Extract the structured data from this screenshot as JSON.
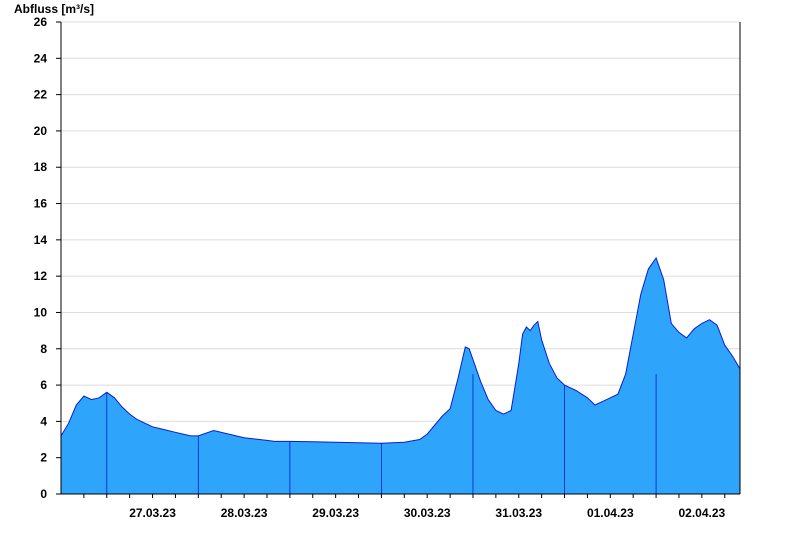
{
  "chart_data": {
    "type": "area",
    "ylabel": "Abfluss [m³/s]",
    "ylim": [
      0,
      26
    ],
    "yticks": [
      0,
      2,
      4,
      6,
      8,
      10,
      12,
      14,
      16,
      18,
      20,
      22,
      24,
      26
    ],
    "xlim": [
      "2023-03-26T12:00",
      "2023-04-02T22:00"
    ],
    "day_ticks": [
      "27.03.23",
      "28.03.23",
      "29.03.23",
      "30.03.23",
      "31.03.23",
      "01.04.23",
      "02.04.23"
    ],
    "grid": true,
    "colors": {
      "fill": "#2ea4fa",
      "line": "#0a1ecf",
      "grid": "#dcdcdc",
      "axis": "#000000"
    },
    "series": [
      {
        "x": [
          "2023-03-26T12:00",
          "2023-03-26T14:00",
          "2023-03-26T16:00",
          "2023-03-26T18:00",
          "2023-03-26T20:00",
          "2023-03-26T22:00",
          "2023-03-27T00:00",
          "2023-03-27T02:00",
          "2023-03-27T04:00",
          "2023-03-27T06:00",
          "2023-03-27T08:00",
          "2023-03-27T10:00",
          "2023-03-27T12:00",
          "2023-03-27T14:00",
          "2023-03-27T16:00",
          "2023-03-27T18:00",
          "2023-03-27T20:00",
          "2023-03-27T22:00",
          "2023-03-28T00:00",
          "2023-03-28T04:00",
          "2023-03-28T08:00",
          "2023-03-28T12:00",
          "2023-03-28T14:00",
          "2023-03-28T16:00",
          "2023-03-28T18:00",
          "2023-03-28T20:00",
          "2023-03-29T00:00",
          "2023-03-29T06:00",
          "2023-03-29T12:00",
          "2023-03-29T18:00",
          "2023-03-30T00:00",
          "2023-03-30T06:00",
          "2023-03-30T10:00",
          "2023-03-30T12:00",
          "2023-03-30T14:00",
          "2023-03-30T16:00",
          "2023-03-30T18:00",
          "2023-03-30T20:00",
          "2023-03-30T22:00",
          "2023-03-30T23:00",
          "2023-03-31T00:00",
          "2023-03-31T02:00",
          "2023-03-31T04:00",
          "2023-03-31T06:00",
          "2023-03-31T08:00",
          "2023-03-31T10:00",
          "2023-03-31T12:00",
          "2023-03-31T13:00",
          "2023-03-31T14:00",
          "2023-03-31T15:00",
          "2023-03-31T16:00",
          "2023-03-31T17:00",
          "2023-03-31T18:00",
          "2023-03-31T20:00",
          "2023-03-31T22:00",
          "2023-04-01T00:00",
          "2023-04-01T03:00",
          "2023-04-01T06:00",
          "2023-04-01T08:00",
          "2023-04-01T10:00",
          "2023-04-01T12:00",
          "2023-04-01T14:00",
          "2023-04-01T16:00",
          "2023-04-01T18:00",
          "2023-04-01T20:00",
          "2023-04-01T22:00",
          "2023-04-02T00:00",
          "2023-04-02T02:00",
          "2023-04-02T04:00",
          "2023-04-02T06:00",
          "2023-04-02T08:00",
          "2023-04-02T10:00",
          "2023-04-02T12:00",
          "2023-04-02T14:00",
          "2023-04-02T16:00",
          "2023-04-02T18:00",
          "2023-04-02T20:00",
          "2023-04-02T22:00"
        ],
        "values": [
          3.2,
          3.9,
          4.9,
          5.4,
          5.2,
          5.3,
          5.6,
          5.3,
          4.8,
          4.4,
          4.1,
          3.9,
          3.7,
          3.6,
          3.5,
          3.4,
          3.3,
          3.2,
          3.2,
          3.5,
          3.3,
          3.1,
          3.05,
          3.0,
          2.95,
          2.9,
          2.9,
          2.88,
          2.85,
          2.82,
          2.8,
          2.85,
          3.0,
          3.3,
          3.8,
          4.3,
          4.7,
          6.3,
          8.1,
          8.0,
          7.4,
          6.2,
          5.2,
          4.6,
          4.4,
          4.6,
          7.2,
          8.8,
          9.2,
          9.0,
          9.3,
          9.5,
          8.5,
          7.2,
          6.4,
          6.0,
          5.7,
          5.3,
          4.9,
          5.1,
          5.3,
          5.5,
          6.6,
          8.8,
          11.0,
          12.4,
          13.0,
          11.8,
          9.4,
          8.9,
          8.6,
          9.1,
          9.4,
          9.6,
          9.3,
          8.2,
          7.6,
          6.9
        ]
      }
    ]
  }
}
